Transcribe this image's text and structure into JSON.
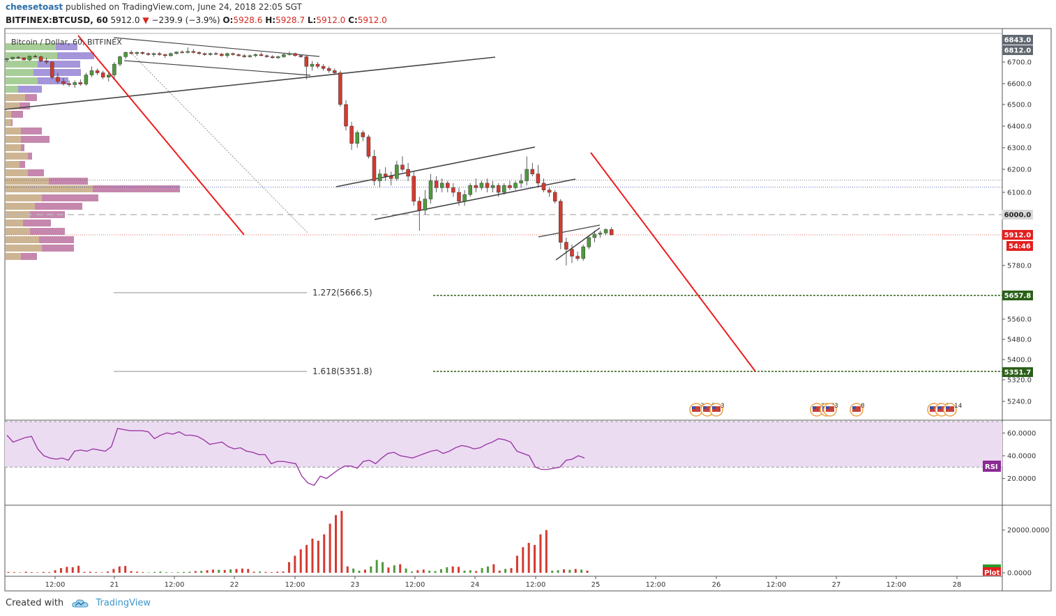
{
  "header": {
    "author": "cheesetoast",
    "published": "published on TradingView.com, June 24, 2018 22:05 SGT",
    "symbol": "BITFINEX:BTCUSD, 60",
    "last": "5912.0",
    "change_arrow": "▼",
    "change": "−239.9 (−3.9%)",
    "ohlc": {
      "o_label": "O:",
      "o": "5928.6",
      "h_label": "H:",
      "h": "5928.7",
      "l_label": "L:",
      "l": "5912.0",
      "c_label": "C:",
      "c": "5912.0"
    }
  },
  "footer": {
    "created_with": "Created with",
    "brand": "TradingView",
    "logo_icon": "tradingview-cloud-icon"
  },
  "colors": {
    "up": "#4e9a3d",
    "down": "#d43a30",
    "rsi_line": "#9b3aa6",
    "rsi_band": "#ecdcf2",
    "fib_line": "#2e5e15",
    "red_line": "#ee1c1c",
    "trend": "#444444"
  },
  "chart_data": [
    {
      "type": "candlestick",
      "title": "Bitcoin / Dollar, 60, BITFINEX",
      "x_tick_labels": [
        "12:00",
        "21",
        "12:00",
        "22",
        "12:00",
        "23",
        "12:00",
        "24",
        "12:00",
        "25",
        "12:00",
        "26",
        "12:00",
        "27",
        "12:00",
        "28"
      ],
      "y_tick_labels": [
        "6843.0",
        "6812.0",
        "6700.0",
        "6600.0",
        "6500.0",
        "6400.0",
        "6300.0",
        "6200.0",
        "6100.0",
        "6000.0",
        "5780.0",
        "5560.0",
        "5480.0",
        "5400.0",
        "5320.0",
        "5240.0"
      ],
      "price_markers": [
        {
          "label": "6843.0",
          "style": "grey"
        },
        {
          "label": "6812.0",
          "style": "grey"
        },
        {
          "label": "6000.0",
          "style": "light"
        },
        {
          "label": "5912.0",
          "style": "red"
        },
        {
          "label": "54:46",
          "style": "red"
        },
        {
          "label": "5657.8",
          "style": "green"
        },
        {
          "label": "5351.7",
          "style": "green"
        }
      ],
      "fib_levels": [
        {
          "ratio": 1.272,
          "label": "1.272(5666.5)",
          "price": 5666.5,
          "target_label": "5657.8"
        },
        {
          "ratio": 1.618,
          "label": "1.618(5351.8)",
          "price": 5351.8,
          "target_label": "5351.7"
        }
      ],
      "horizontal_levels": [
        6150,
        6120,
        6000,
        5912
      ],
      "event_badges": [
        "3",
        "3",
        "3",
        "2",
        "3",
        "3",
        "8",
        "5",
        "7",
        "14"
      ],
      "candles_ohlc": [
        [
          6720,
          6740,
          6700,
          6730
        ],
        [
          6730,
          6750,
          6720,
          6745
        ],
        [
          6745,
          6760,
          6730,
          6740
        ],
        [
          6740,
          6745,
          6715,
          6720
        ],
        [
          6720,
          6760,
          6710,
          6755
        ],
        [
          6755,
          6770,
          6740,
          6750
        ],
        [
          6750,
          6760,
          6700,
          6710
        ],
        [
          6710,
          6740,
          6690,
          6700
        ],
        [
          6700,
          6705,
          6620,
          6630
        ],
        [
          6630,
          6650,
          6600,
          6610
        ],
        [
          6610,
          6625,
          6590,
          6600
        ],
        [
          6600,
          6615,
          6585,
          6595
        ],
        [
          6595,
          6615,
          6580,
          6605
        ],
        [
          6605,
          6620,
          6590,
          6598
        ],
        [
          6598,
          6650,
          6590,
          6640
        ],
        [
          6640,
          6680,
          6630,
          6660
        ],
        [
          6660,
          6670,
          6640,
          6650
        ],
        [
          6650,
          6660,
          6620,
          6630
        ],
        [
          6630,
          6650,
          6610,
          6640
        ],
        [
          6640,
          6700,
          6620,
          6690
        ],
        [
          6690,
          6760,
          6680,
          6750
        ],
        [
          6750,
          6800,
          6730,
          6790
        ],
        [
          6790,
          6810,
          6770,
          6780
        ],
        [
          6780,
          6800,
          6760,
          6790
        ],
        [
          6790,
          6800,
          6770,
          6780
        ],
        [
          6780,
          6790,
          6760,
          6770
        ],
        [
          6770,
          6790,
          6750,
          6780
        ],
        [
          6780,
          6795,
          6760,
          6770
        ],
        [
          6770,
          6780,
          6740,
          6760
        ],
        [
          6760,
          6790,
          6750,
          6780
        ],
        [
          6780,
          6800,
          6770,
          6795
        ],
        [
          6795,
          6810,
          6780,
          6790
        ],
        [
          6790,
          6820,
          6780,
          6800
        ],
        [
          6800,
          6815,
          6780,
          6790
        ],
        [
          6790,
          6800,
          6770,
          6780
        ],
        [
          6780,
          6790,
          6760,
          6770
        ],
        [
          6770,
          6790,
          6760,
          6780
        ],
        [
          6780,
          6795,
          6765,
          6775
        ],
        [
          6775,
          6785,
          6750,
          6760
        ],
        [
          6760,
          6790,
          6740,
          6780
        ],
        [
          6780,
          6790,
          6760,
          6770
        ],
        [
          6770,
          6780,
          6750,
          6760
        ],
        [
          6760,
          6775,
          6740,
          6750
        ],
        [
          6750,
          6770,
          6740,
          6760
        ],
        [
          6760,
          6780,
          6745,
          6770
        ],
        [
          6770,
          6790,
          6755,
          6760
        ],
        [
          6760,
          6770,
          6740,
          6750
        ],
        [
          6750,
          6765,
          6735,
          6740
        ],
        [
          6740,
          6760,
          6730,
          6750
        ],
        [
          6750,
          6780,
          6740,
          6770
        ],
        [
          6770,
          6800,
          6760,
          6780
        ],
        [
          6780,
          6790,
          6750,
          6760
        ],
        [
          6760,
          6770,
          6740,
          6750
        ],
        [
          6750,
          6760,
          6620,
          6680
        ],
        [
          6680,
          6710,
          6660,
          6690
        ],
        [
          6690,
          6700,
          6670,
          6680
        ],
        [
          6680,
          6690,
          6660,
          6670
        ],
        [
          6670,
          6680,
          6650,
          6660
        ],
        [
          6660,
          6670,
          6640,
          6650
        ],
        [
          6650,
          6660,
          6490,
          6500
        ],
        [
          6500,
          6520,
          6380,
          6400
        ],
        [
          6400,
          6420,
          6290,
          6320
        ],
        [
          6320,
          6380,
          6300,
          6370
        ],
        [
          6370,
          6380,
          6330,
          6350
        ],
        [
          6350,
          6360,
          6250,
          6260
        ],
        [
          6260,
          6290,
          6130,
          6150
        ],
        [
          6150,
          6200,
          6120,
          6180
        ],
        [
          6180,
          6210,
          6150,
          6170
        ],
        [
          6170,
          6190,
          6130,
          6160
        ],
        [
          6160,
          6240,
          6150,
          6220
        ],
        [
          6220,
          6260,
          6190,
          6200
        ],
        [
          6200,
          6230,
          6150,
          6170
        ],
        [
          6170,
          6190,
          6040,
          6060
        ],
        [
          6060,
          6080,
          5930,
          6020
        ],
        [
          6020,
          6110,
          6000,
          6070
        ],
        [
          6070,
          6180,
          6050,
          6150
        ],
        [
          6150,
          6170,
          6100,
          6120
        ],
        [
          6120,
          6160,
          6100,
          6140
        ],
        [
          6140,
          6150,
          6100,
          6120
        ],
        [
          6120,
          6140,
          6080,
          6100
        ],
        [
          6100,
          6120,
          6040,
          6060
        ],
        [
          6060,
          6110,
          6040,
          6090
        ],
        [
          6090,
          6140,
          6080,
          6130
        ],
        [
          6130,
          6160,
          6100,
          6120
        ],
        [
          6120,
          6150,
          6110,
          6140
        ],
        [
          6140,
          6160,
          6100,
          6120
        ],
        [
          6120,
          6150,
          6100,
          6130
        ],
        [
          6130,
          6140,
          6080,
          6100
        ],
        [
          6100,
          6140,
          6090,
          6130
        ],
        [
          6130,
          6150,
          6110,
          6120
        ],
        [
          6120,
          6150,
          6110,
          6140
        ],
        [
          6140,
          6180,
          6120,
          6150
        ],
        [
          6150,
          6260,
          6130,
          6200
        ],
        [
          6200,
          6230,
          6170,
          6180
        ],
        [
          6180,
          6220,
          6120,
          6140
        ],
        [
          6140,
          6160,
          6100,
          6110
        ],
        [
          6110,
          6120,
          6080,
          6100
        ],
        [
          6100,
          6110,
          6050,
          6060
        ],
        [
          6060,
          6070,
          5850,
          5880
        ],
        [
          5880,
          5900,
          5780,
          5850
        ],
        [
          5850,
          5870,
          5790,
          5820
        ],
        [
          5820,
          5840,
          5800,
          5810
        ],
        [
          5810,
          5870,
          5800,
          5860
        ],
        [
          5860,
          5910,
          5850,
          5900
        ],
        [
          5900,
          5930,
          5880,
          5915
        ],
        [
          5915,
          5930,
          5900,
          5920
        ],
        [
          5920,
          5940,
          5910,
          5935
        ],
        [
          5935,
          5945,
          5910,
          5912
        ]
      ]
    },
    {
      "type": "line",
      "title": "RSI",
      "series": [
        {
          "name": "RSI",
          "values": [
            58,
            52,
            54,
            56,
            57,
            46,
            40,
            38,
            37,
            38,
            36,
            44,
            45,
            44,
            46,
            45,
            44,
            48,
            64,
            63,
            62,
            62,
            62,
            61,
            55,
            58,
            60,
            59,
            61,
            58,
            58,
            57,
            54,
            50,
            51,
            52,
            48,
            46,
            47,
            44,
            43,
            41,
            41,
            33,
            35,
            35,
            34,
            33,
            22,
            16,
            14,
            22,
            20,
            24,
            28,
            31,
            31,
            29,
            35,
            36,
            33,
            38,
            42,
            43,
            40,
            39,
            38,
            40,
            42,
            44,
            45,
            42,
            44,
            47,
            49,
            48,
            46,
            47,
            50,
            52,
            55,
            54,
            52,
            44,
            42,
            40,
            30,
            28,
            28,
            29,
            30,
            36,
            37,
            40,
            38
          ]
        }
      ],
      "y_tick_labels": [
        "60.0000",
        "40.0000",
        "20.0000"
      ],
      "ylim": [
        10,
        70
      ],
      "bands": [
        30,
        70
      ],
      "badge": "RSI"
    },
    {
      "type": "bar",
      "title": "Volume",
      "y_tick_labels": [
        "20000.0000",
        "0.0000"
      ],
      "badge": "Plot",
      "ylim": [
        0,
        30000
      ],
      "values": [
        400,
        300,
        200,
        500,
        300,
        200,
        400,
        300,
        1200,
        2200,
        2800,
        2600,
        3300,
        400,
        500,
        300,
        200,
        600,
        1800,
        3000,
        3200,
        800,
        500,
        300,
        200,
        400,
        600,
        300,
        200,
        300,
        400,
        500,
        800,
        900,
        1200,
        1500,
        1400,
        1300,
        1600,
        1800,
        2000,
        1800,
        500,
        600,
        400,
        300,
        500,
        600,
        5000,
        8000,
        11000,
        13000,
        16000,
        15000,
        18000,
        23000,
        27000,
        29000,
        3000,
        2000,
        1000,
        1500,
        3000,
        6000,
        5000,
        2500,
        3500,
        4000,
        2000,
        600,
        1200,
        1500,
        1000,
        800,
        1700,
        2600,
        3000,
        2800,
        1000,
        1200,
        800,
        2200,
        3000,
        4000,
        1000,
        1800,
        2200,
        8000,
        12000,
        14000,
        13000,
        18000,
        20000,
        1000,
        1200,
        1600,
        1400,
        1800,
        1500,
        1000
      ],
      "bar_up": [
        false,
        false,
        false,
        false,
        false,
        false,
        false,
        false,
        false,
        false,
        false,
        false,
        false,
        false,
        false,
        false,
        false,
        false,
        false,
        false,
        false,
        false,
        false,
        false,
        true,
        true,
        true,
        true,
        true,
        true,
        true,
        true,
        false,
        true,
        false,
        false,
        true,
        false,
        true,
        false,
        false,
        false,
        false,
        true,
        false,
        false,
        false,
        false,
        false,
        false,
        false,
        false,
        false,
        false,
        false,
        false,
        false,
        false,
        false,
        true,
        true,
        false,
        true,
        true,
        true,
        false,
        true,
        false,
        true,
        true,
        false,
        false,
        true,
        true,
        true,
        true,
        false,
        false,
        true,
        true,
        false,
        true,
        true,
        false,
        false,
        true,
        false,
        false,
        false,
        false,
        false,
        false,
        false,
        true,
        true,
        false,
        true,
        false,
        true,
        false
      ]
    }
  ]
}
